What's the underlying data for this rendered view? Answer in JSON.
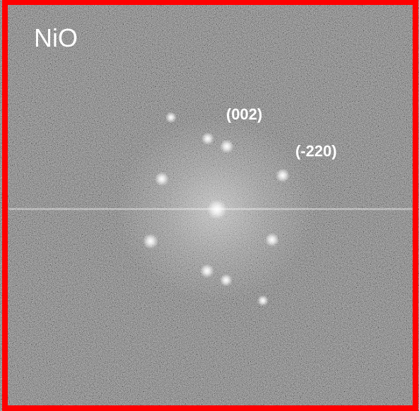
{
  "image": {
    "label": "NiO",
    "annotations": [
      "(002)",
      "(-220)"
    ]
  }
}
